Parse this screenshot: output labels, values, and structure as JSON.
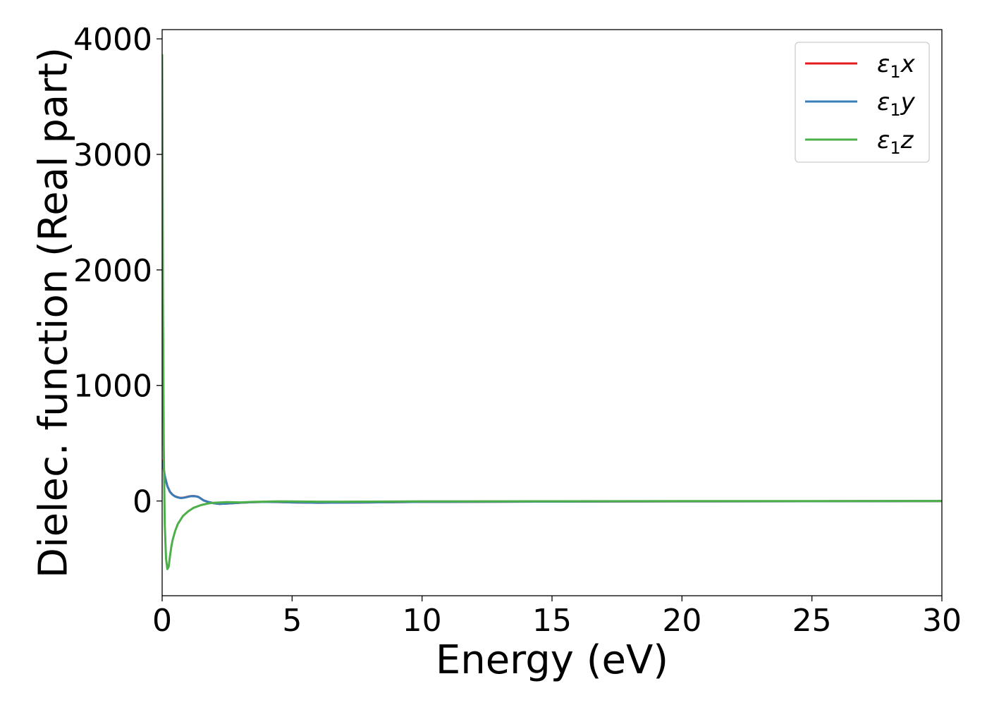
{
  "chart_data": {
    "type": "line",
    "xlabel": "Energy (eV)",
    "ylabel": "Dielec. function (Real part)",
    "xlim": [
      0,
      30
    ],
    "ylim": [
      -820,
      4080
    ],
    "xticks": [
      0,
      5,
      10,
      15,
      20,
      25,
      30
    ],
    "yticks": [
      0,
      1000,
      2000,
      3000,
      4000
    ],
    "xtick_labels": [
      "0",
      "5",
      "10",
      "15",
      "20",
      "25",
      "30"
    ],
    "ytick_labels": [
      "0",
      "1000",
      "2000",
      "3000",
      "4000"
    ],
    "grid": false,
    "legend": {
      "placement": "top-right"
    },
    "series": [
      {
        "name": "ε1x",
        "label_main": "ε",
        "label_sub": "1",
        "label_suffix": "x",
        "color": "#e41a1c",
        "x": [
          0,
          0.05,
          0.1,
          0.2,
          0.3,
          0.4,
          0.5,
          0.6,
          0.7,
          0.8,
          0.9,
          1.0,
          1.1,
          1.2,
          1.3,
          1.4,
          1.5,
          1.6,
          1.8,
          2.0,
          2.2,
          2.5,
          3.0,
          3.5,
          4.0,
          4.5,
          5.0,
          6.0,
          7.0,
          8.0,
          10.0,
          15.0,
          20.0,
          25.0,
          30.0
        ],
        "y": [
          350,
          300,
          220,
          130,
          80,
          55,
          40,
          32,
          27,
          28,
          32,
          38,
          42,
          43,
          41,
          35,
          20,
          5,
          -10,
          -20,
          -25,
          -22,
          -15,
          -10,
          -8,
          -9,
          -12,
          -15,
          -14,
          -12,
          -8,
          -5,
          -3,
          -2,
          -1
        ]
      },
      {
        "name": "ε1y",
        "label_main": "ε",
        "label_sub": "1",
        "label_suffix": "y",
        "color": "#377eb8",
        "x": [
          0,
          0.05,
          0.1,
          0.2,
          0.3,
          0.4,
          0.5,
          0.6,
          0.7,
          0.8,
          0.9,
          1.0,
          1.1,
          1.2,
          1.3,
          1.4,
          1.5,
          1.6,
          1.8,
          2.0,
          2.2,
          2.5,
          3.0,
          3.5,
          4.0,
          4.5,
          5.0,
          6.0,
          7.0,
          8.0,
          10.0,
          15.0,
          20.0,
          25.0,
          30.0
        ],
        "y": [
          340,
          290,
          215,
          128,
          78,
          54,
          39,
          31,
          26,
          27,
          31,
          36,
          41,
          42,
          40,
          34,
          19,
          4,
          -10,
          -20,
          -25,
          -22,
          -15,
          -10,
          -8,
          -9,
          -12,
          -15,
          -14,
          -12,
          -8,
          -5,
          -3,
          -2,
          -1
        ]
      },
      {
        "name": "ε1z",
        "label_main": "ε",
        "label_sub": "1",
        "label_suffix": "z",
        "color": "#4daf4a",
        "x": [
          0,
          0.01,
          0.03,
          0.06,
          0.1,
          0.15,
          0.2,
          0.25,
          0.3,
          0.35,
          0.4,
          0.5,
          0.6,
          0.8,
          1.0,
          1.2,
          1.5,
          1.8,
          2.0,
          2.5,
          3.0,
          3.5,
          4.0,
          4.5,
          5.0,
          6.0,
          7.0,
          8.0,
          10.0,
          15.0,
          20.0,
          25.0,
          30.0
        ],
        "y": [
          3860,
          3300,
          1800,
          500,
          -200,
          -500,
          -590,
          -570,
          -480,
          -400,
          -340,
          -260,
          -200,
          -130,
          -90,
          -60,
          -35,
          -20,
          -15,
          -10,
          -12,
          -8,
          -5,
          -3,
          -4,
          -6,
          -6,
          -5,
          -3,
          -2,
          -1,
          -1,
          0
        ]
      }
    ]
  }
}
